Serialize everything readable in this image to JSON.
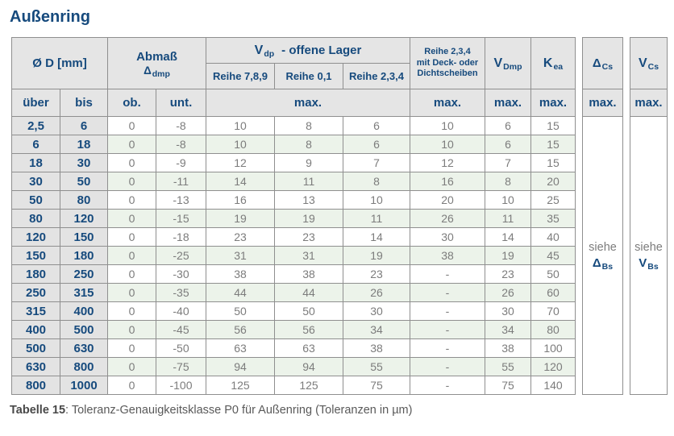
{
  "title": "Außenring",
  "colors": {
    "accent_blue": "#164a7d",
    "header_gray": "#e5e5e5",
    "dim_col_gray": "#e3e3e3",
    "row_green": "#ecf3ea",
    "border_gray": "#8f8f8f",
    "value_gray": "#7c7c7c"
  },
  "table": {
    "header": {
      "diameter": "Ø D  [mm]",
      "abmass_line1": "Abmaß",
      "abmass_sym": "Δ",
      "abmass_sub": "dmp",
      "vdp_sym": "V",
      "vdp_sub": "dp",
      "vdp_rest": "-  offene Lager",
      "reihe789": "Reihe 7,8,9",
      "reihe01": "Reihe 0,1",
      "reihe234": "Reihe 2,3,4",
      "deck_line1": "Reihe 2,3,4",
      "deck_line2": "mit Deck- oder",
      "deck_line3": "Dichtscheiben",
      "vdmp_sym": "V",
      "vdmp_sub": "Dmp",
      "kea_sym": "K",
      "kea_sub": "ea",
      "dcs_sym": "Δ",
      "dcs_sub": "Cs",
      "vcs_sym": "V",
      "vcs_sub": "Cs",
      "ueber": "über",
      "bis": "bis",
      "ob": "ob.",
      "unt": "unt.",
      "max": "max."
    },
    "rows": [
      [
        "2,5",
        "6",
        "0",
        "-8",
        "10",
        "8",
        "6",
        "10",
        "6",
        "15"
      ],
      [
        "6",
        "18",
        "0",
        "-8",
        "10",
        "8",
        "6",
        "10",
        "6",
        "15"
      ],
      [
        "18",
        "30",
        "0",
        "-9",
        "12",
        "9",
        "7",
        "12",
        "7",
        "15"
      ],
      [
        "30",
        "50",
        "0",
        "-11",
        "14",
        "11",
        "8",
        "16",
        "8",
        "20"
      ],
      [
        "50",
        "80",
        "0",
        "-13",
        "16",
        "13",
        "10",
        "20",
        "10",
        "25"
      ],
      [
        "80",
        "120",
        "0",
        "-15",
        "19",
        "19",
        "11",
        "26",
        "11",
        "35"
      ],
      [
        "120",
        "150",
        "0",
        "-18",
        "23",
        "23",
        "14",
        "30",
        "14",
        "40"
      ],
      [
        "150",
        "180",
        "0",
        "-25",
        "31",
        "31",
        "19",
        "38",
        "19",
        "45"
      ],
      [
        "180",
        "250",
        "0",
        "-30",
        "38",
        "38",
        "23",
        "-",
        "23",
        "50"
      ],
      [
        "250",
        "315",
        "0",
        "-35",
        "44",
        "44",
        "26",
        "-",
        "26",
        "60"
      ],
      [
        "315",
        "400",
        "0",
        "-40",
        "50",
        "50",
        "30",
        "-",
        "30",
        "70"
      ],
      [
        "400",
        "500",
        "0",
        "-45",
        "56",
        "56",
        "34",
        "-",
        "34",
        "80"
      ],
      [
        "500",
        "630",
        "0",
        "-50",
        "63",
        "63",
        "38",
        "-",
        "38",
        "100"
      ],
      [
        "630",
        "800",
        "0",
        "-75",
        "94",
        "94",
        "55",
        "-",
        "55",
        "120"
      ],
      [
        "800",
        "1000",
        "0",
        "-100",
        "125",
        "125",
        "75",
        "-",
        "75",
        "140"
      ]
    ],
    "siehe_dbs": {
      "word": "siehe",
      "sym": "Δ",
      "sub": "Bs"
    },
    "siehe_vbs": {
      "word": "siehe",
      "sym": "V",
      "sub": "Bs"
    }
  },
  "caption": {
    "label": "Tabelle 15",
    "rest": ": Toleranz-Genauigkeitsklasse P0 für Außenring (Toleranzen in µm)"
  }
}
